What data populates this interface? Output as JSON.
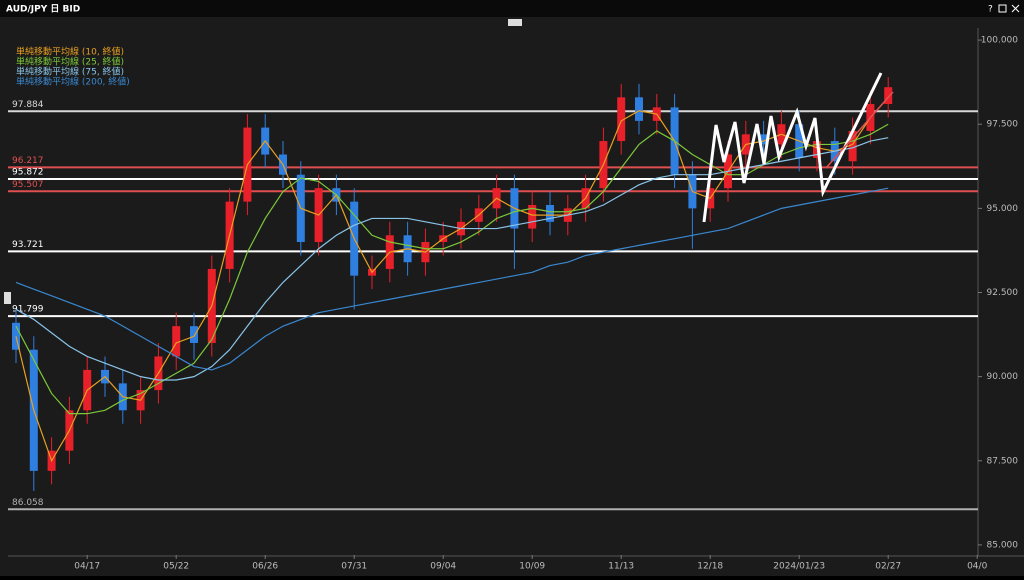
{
  "window": {
    "title": "AUD/JPY 日 BID",
    "help": "?"
  },
  "chart_data": {
    "type": "candlestick",
    "categories": [
      null,
      null,
      null,
      null,
      "04/17",
      null,
      null,
      null,
      null,
      "05/22",
      null,
      null,
      null,
      null,
      "06/26",
      null,
      null,
      null,
      null,
      "07/31",
      null,
      null,
      null,
      null,
      "09/04",
      null,
      null,
      null,
      null,
      "10/09",
      null,
      null,
      null,
      null,
      "11/13",
      null,
      null,
      null,
      null,
      "12/18",
      null,
      null,
      null,
      null,
      "2024/01/23",
      null,
      null,
      null,
      null,
      "02/27",
      null,
      null,
      null,
      null,
      "04/0"
    ],
    "open": [
      91.6,
      90.8,
      87.2,
      87.8,
      89.0,
      90.2,
      89.8,
      89.0,
      89.6,
      90.6,
      91.5,
      91.0,
      93.2,
      95.2,
      97.4,
      96.6,
      96.0,
      94.0,
      95.6,
      95.2,
      93.0,
      93.2,
      94.2,
      93.4,
      94.0,
      94.2,
      94.6,
      95.0,
      95.6,
      94.4,
      95.1,
      94.6,
      95.0,
      95.6,
      97.0,
      98.3,
      97.6,
      98.0,
      96.0,
      95.0,
      95.6,
      96.6,
      97.2,
      96.9,
      97.5,
      96.5,
      97.0,
      96.4,
      97.3,
      98.1,
      null,
      null,
      null,
      null,
      null
    ],
    "high": [
      92.0,
      91.2,
      88.2,
      89.4,
      90.6,
      90.6,
      90.2,
      90.0,
      91.0,
      91.9,
      91.9,
      93.6,
      95.6,
      97.8,
      97.8,
      97.0,
      96.4,
      96.0,
      96.0,
      95.6,
      93.6,
      94.6,
      94.6,
      94.4,
      94.6,
      95.0,
      95.4,
      96.0,
      96.0,
      95.5,
      95.5,
      95.4,
      96.0,
      97.4,
      98.7,
      98.7,
      98.4,
      98.4,
      96.4,
      96.0,
      97.0,
      97.6,
      97.6,
      97.9,
      97.9,
      97.4,
      97.4,
      97.7,
      98.5,
      98.9,
      null,
      null,
      null,
      null,
      null
    ],
    "low": [
      90.4,
      86.6,
      86.8,
      87.4,
      88.6,
      89.4,
      88.6,
      88.6,
      89.2,
      90.2,
      90.5,
      90.6,
      92.8,
      94.8,
      96.2,
      95.6,
      93.6,
      93.6,
      94.8,
      92.0,
      92.6,
      92.8,
      93.0,
      93.0,
      93.6,
      93.8,
      94.2,
      94.6,
      93.2,
      94.0,
      94.2,
      94.2,
      94.6,
      95.2,
      96.6,
      97.2,
      97.2,
      95.6,
      93.8,
      94.6,
      95.2,
      96.2,
      96.5,
      96.5,
      96.1,
      96.1,
      96.0,
      96.0,
      96.9,
      97.7,
      null,
      null,
      null,
      null,
      null
    ],
    "close": [
      90.8,
      87.2,
      87.8,
      89.0,
      90.2,
      89.8,
      89.0,
      89.6,
      90.6,
      91.5,
      91.0,
      93.2,
      95.2,
      97.4,
      96.6,
      96.0,
      94.0,
      95.6,
      95.2,
      93.0,
      93.2,
      94.2,
      93.4,
      94.0,
      94.2,
      94.6,
      95.0,
      95.6,
      94.4,
      95.1,
      94.6,
      95.0,
      95.6,
      97.0,
      98.3,
      97.6,
      98.0,
      96.0,
      95.0,
      95.6,
      96.6,
      97.2,
      96.9,
      97.5,
      96.5,
      97.0,
      96.4,
      97.3,
      98.1,
      98.6,
      null,
      null,
      null,
      null,
      null
    ],
    "up_color": "#e8202a",
    "down_color": "#2f7fe0",
    "moving_averages": [
      {
        "name": "単純移動平均線 (10, 終値)",
        "color": "#e8a020",
        "values": [
          91.2,
          89.0,
          87.5,
          88.4,
          89.6,
          90.0,
          89.4,
          89.3,
          90.1,
          91.0,
          91.2,
          92.1,
          94.2,
          96.3,
          97.0,
          96.3,
          95.0,
          94.8,
          95.4,
          94.1,
          93.1,
          93.7,
          93.8,
          93.7,
          94.1,
          94.4,
          94.8,
          95.3,
          95.0,
          94.8,
          94.8,
          94.8,
          95.3,
          96.3,
          97.6,
          97.9,
          97.8,
          97.0,
          95.5,
          95.3,
          96.1,
          96.9,
          97.0,
          97.2,
          97.0,
          96.8,
          96.7,
          96.9,
          97.7,
          98.3,
          null,
          null,
          null,
          null,
          null
        ]
      },
      {
        "name": "単純移動平均線 (25, 終値)",
        "color": "#7cc83a",
        "values": [
          91.5,
          90.5,
          89.5,
          88.9,
          88.9,
          89.0,
          89.3,
          89.5,
          89.8,
          90.1,
          90.4,
          91.1,
          92.3,
          93.7,
          94.7,
          95.5,
          95.9,
          95.8,
          95.4,
          94.8,
          94.2,
          94.0,
          93.9,
          93.8,
          93.8,
          94.0,
          94.3,
          94.7,
          94.9,
          95.0,
          94.9,
          94.9,
          95.0,
          95.5,
          96.2,
          96.9,
          97.3,
          97.0,
          96.6,
          96.3,
          96.0,
          96.0,
          96.3,
          96.6,
          96.8,
          96.9,
          96.9,
          97.0,
          97.2,
          97.5,
          null,
          null,
          null,
          null,
          null
        ]
      },
      {
        "name": "単純移動平均線 (75, 終値)",
        "color": "#8ac4e8",
        "values": [
          92.0,
          91.7,
          91.3,
          90.9,
          90.6,
          90.4,
          90.2,
          90.0,
          89.9,
          89.9,
          90.0,
          90.3,
          90.8,
          91.5,
          92.2,
          92.8,
          93.3,
          93.8,
          94.2,
          94.5,
          94.7,
          94.7,
          94.7,
          94.6,
          94.5,
          94.4,
          94.4,
          94.4,
          94.5,
          94.6,
          94.7,
          94.8,
          94.9,
          95.1,
          95.4,
          95.7,
          95.9,
          96.0,
          96.0,
          96.0,
          96.1,
          96.2,
          96.3,
          96.4,
          96.5,
          96.6,
          96.7,
          96.8,
          97.0,
          97.1,
          null,
          null,
          null,
          null,
          null
        ]
      },
      {
        "name": "単純移動平均線 (200, 終値)",
        "color": "#3a88d0",
        "values": [
          92.8,
          92.6,
          92.4,
          92.2,
          92.0,
          91.8,
          91.5,
          91.2,
          90.9,
          90.6,
          90.3,
          90.2,
          90.4,
          90.8,
          91.2,
          91.5,
          91.7,
          91.9,
          92.0,
          92.1,
          92.2,
          92.3,
          92.4,
          92.5,
          92.6,
          92.7,
          92.8,
          92.9,
          93.0,
          93.1,
          93.3,
          93.4,
          93.6,
          93.7,
          93.8,
          93.9,
          94.0,
          94.1,
          94.2,
          94.3,
          94.4,
          94.6,
          94.8,
          95.0,
          95.1,
          95.2,
          95.3,
          95.4,
          95.5,
          95.6,
          null,
          null,
          null,
          null,
          null
        ]
      }
    ],
    "levels": [
      {
        "value": 97.884,
        "color": "#d8d8d8"
      },
      {
        "value": 96.217,
        "color": "#e05050"
      },
      {
        "value": 95.872,
        "color": "#ffffff"
      },
      {
        "value": 95.507,
        "color": "#e05050"
      },
      {
        "value": 93.721,
        "color": "#ffffff"
      },
      {
        "value": 91.799,
        "color": "#ffffff"
      },
      {
        "value": 86.058,
        "color": "#b0b0b0"
      }
    ],
    "ylim": [
      84.7,
      100.3
    ],
    "yticks": [
      {
        "value": 85,
        "label": "85.000"
      },
      {
        "value": 87.5,
        "label": "87.500"
      },
      {
        "value": 90,
        "label": "90.000"
      },
      {
        "value": 92.5,
        "label": "92.500"
      },
      {
        "value": 95,
        "label": "95.000"
      },
      {
        "value": 97.5,
        "label": "97.500"
      },
      {
        "value": 100,
        "label": "100.000"
      }
    ]
  }
}
